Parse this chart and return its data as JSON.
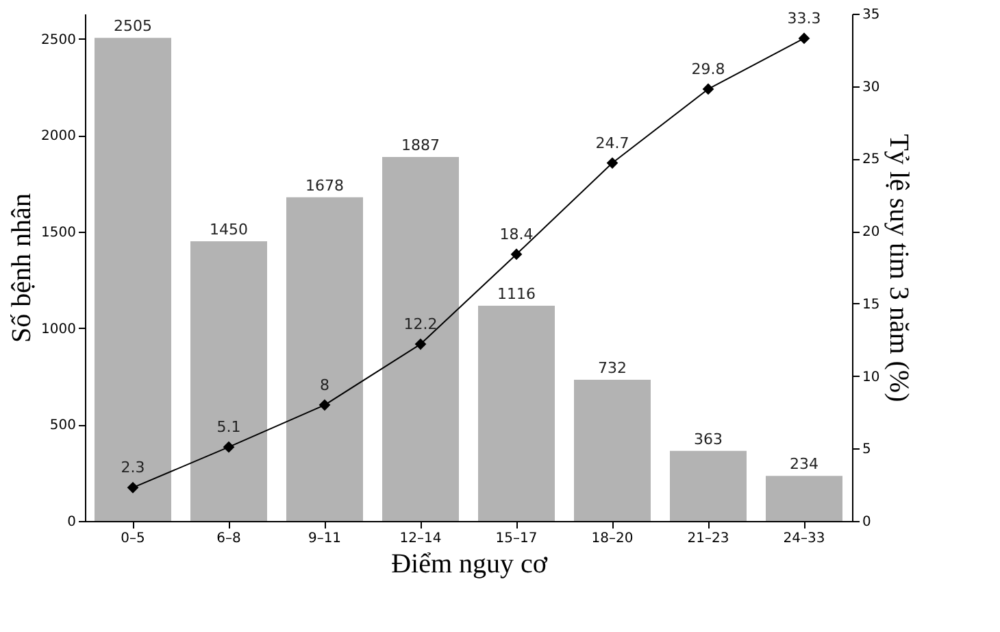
{
  "chart_data": {
    "type": "bar",
    "xlabel": "Điểm nguy cơ",
    "ylabel": "Số bệnh nhân",
    "y2label": "Tỷ lệ suy tim 3 năm (%)",
    "categories": [
      "0–5",
      "6–8",
      "9–11",
      "12–14",
      "15–17",
      "18–20",
      "21–23",
      "24–33"
    ],
    "series": [
      {
        "color": "#b3b3b3",
        "values": [
          2505,
          1450,
          1678,
          1887,
          1116,
          732,
          363,
          234
        ]
      },
      {
        "type": "line",
        "axis": "y2",
        "color": "#000000",
        "marker": "diamond",
        "values": [
          2.3,
          5.1,
          8,
          12.2,
          18.4,
          24.7,
          29.8,
          33.3
        ]
      }
    ],
    "ylim": [
      0,
      2630
    ],
    "yticks": [
      0,
      500,
      1000,
      1500,
      2000,
      2500
    ],
    "y2lim": [
      0,
      35
    ],
    "y2ticks": [
      0,
      5,
      10,
      15,
      20,
      25,
      30,
      35
    ],
    "data_labels": true
  }
}
